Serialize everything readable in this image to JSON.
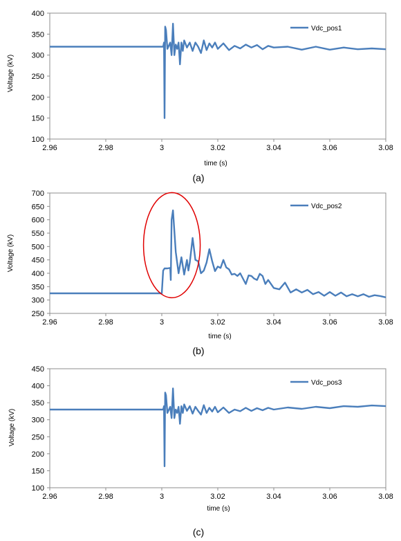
{
  "chart_data": [
    {
      "type": "line",
      "caption": "(a)",
      "xlabel": "time (s)",
      "ylabel": "Voltage (kV)",
      "xlim": [
        2.96,
        3.08
      ],
      "ylim": [
        100,
        400
      ],
      "xticks": [
        "2.96",
        "2.98",
        "3",
        "3.02",
        "3.04",
        "3.06",
        "3.08"
      ],
      "yticks": [
        "100",
        "150",
        "200",
        "250",
        "300",
        "350",
        "400"
      ],
      "legend_position": "top-right",
      "grid": false,
      "color": "#4a7ebb",
      "series": [
        {
          "name": "Vdc_pos1",
          "x": [
            2.96,
            2.97,
            2.98,
            2.99,
            2.9995,
            3.0005,
            3.0008,
            3.001,
            3.0012,
            3.0015,
            3.002,
            3.003,
            3.0035,
            3.004,
            3.0045,
            3.005,
            3.0055,
            3.006,
            3.0065,
            3.007,
            3.0075,
            3.008,
            3.009,
            3.01,
            3.011,
            3.012,
            3.013,
            3.014,
            3.015,
            3.016,
            3.017,
            3.018,
            3.019,
            3.02,
            3.022,
            3.024,
            3.026,
            3.028,
            3.03,
            3.032,
            3.034,
            3.036,
            3.038,
            3.04,
            3.045,
            3.05,
            3.055,
            3.06,
            3.065,
            3.07,
            3.075,
            3.08
          ],
          "y": [
            320,
            320,
            320,
            320,
            320,
            320,
            330,
            150,
            368,
            360,
            315,
            330,
            300,
            375,
            300,
            325,
            315,
            330,
            278,
            330,
            310,
            335,
            318,
            330,
            310,
            330,
            320,
            305,
            335,
            312,
            328,
            318,
            330,
            315,
            328,
            312,
            322,
            316,
            325,
            318,
            324,
            314,
            322,
            318,
            320,
            313,
            320,
            313,
            318,
            314,
            316,
            314
          ]
        }
      ]
    },
    {
      "type": "line",
      "caption": "(b)",
      "xlabel": "time (s)",
      "ylabel": "Voltage (kV)",
      "xlim": [
        2.96,
        3.08
      ],
      "ylim": [
        250,
        700
      ],
      "xticks": [
        "2.96",
        "2.98",
        "3",
        "3.02",
        "3.04",
        "3.06",
        "3.08"
      ],
      "yticks": [
        "250",
        "300",
        "350",
        "400",
        "450",
        "500",
        "550",
        "600",
        "650",
        "700"
      ],
      "legend_position": "top-right",
      "grid": false,
      "color": "#4a7ebb",
      "highlight_color": "#e00000",
      "series": [
        {
          "name": "Vdc_pos2",
          "x": [
            2.96,
            2.97,
            2.98,
            2.99,
            2.9995,
            3.0,
            3.0005,
            3.001,
            3.002,
            3.003,
            3.0032,
            3.0035,
            3.004,
            3.005,
            3.006,
            3.007,
            3.008,
            3.009,
            3.0095,
            3.01,
            3.011,
            3.012,
            3.013,
            3.014,
            3.015,
            3.016,
            3.017,
            3.018,
            3.019,
            3.02,
            3.021,
            3.022,
            3.023,
            3.024,
            3.025,
            3.026,
            3.027,
            3.028,
            3.03,
            3.031,
            3.032,
            3.033,
            3.034,
            3.035,
            3.036,
            3.037,
            3.038,
            3.04,
            3.042,
            3.044,
            3.046,
            3.048,
            3.05,
            3.052,
            3.054,
            3.056,
            3.058,
            3.06,
            3.062,
            3.064,
            3.066,
            3.068,
            3.07,
            3.072,
            3.074,
            3.076,
            3.078,
            3.08
          ],
          "y": [
            325,
            325,
            325,
            325,
            325,
            325,
            410,
            418,
            418,
            420,
            375,
            600,
            635,
            480,
            400,
            460,
            395,
            450,
            410,
            440,
            532,
            450,
            445,
            400,
            410,
            440,
            490,
            445,
            408,
            425,
            420,
            450,
            422,
            415,
            395,
            398,
            390,
            400,
            360,
            392,
            390,
            380,
            375,
            398,
            390,
            360,
            375,
            345,
            340,
            365,
            328,
            340,
            328,
            338,
            322,
            330,
            316,
            330,
            316,
            328,
            314,
            322,
            314,
            322,
            312,
            318,
            315,
            310
          ]
        }
      ]
    },
    {
      "type": "line",
      "caption": "(c)",
      "xlabel": "time (s)",
      "ylabel": "Voltage (kV)",
      "xlim": [
        2.96,
        3.08
      ],
      "ylim": [
        100,
        450
      ],
      "xticks": [
        "2.96",
        "2.98",
        "3",
        "3.02",
        "3.04",
        "3.06",
        "3.08"
      ],
      "yticks": [
        "100",
        "150",
        "200",
        "250",
        "300",
        "350",
        "400",
        "450"
      ],
      "legend_position": "top-right",
      "grid": false,
      "color": "#4a7ebb",
      "series": [
        {
          "name": "Vdc_pos3",
          "x": [
            2.96,
            2.97,
            2.98,
            2.99,
            2.9995,
            3.0005,
            3.0008,
            3.001,
            3.0012,
            3.0015,
            3.002,
            3.003,
            3.0035,
            3.004,
            3.0045,
            3.005,
            3.0055,
            3.006,
            3.0065,
            3.007,
            3.0075,
            3.008,
            3.009,
            3.01,
            3.011,
            3.012,
            3.013,
            3.014,
            3.015,
            3.016,
            3.017,
            3.018,
            3.019,
            3.02,
            3.022,
            3.024,
            3.026,
            3.028,
            3.03,
            3.032,
            3.034,
            3.036,
            3.038,
            3.04,
            3.045,
            3.05,
            3.055,
            3.06,
            3.065,
            3.07,
            3.075,
            3.08
          ],
          "y": [
            330,
            330,
            330,
            330,
            330,
            330,
            340,
            163,
            380,
            372,
            320,
            338,
            305,
            392,
            305,
            330,
            320,
            338,
            288,
            340,
            320,
            345,
            326,
            340,
            318,
            338,
            326,
            315,
            343,
            320,
            335,
            324,
            338,
            322,
            336,
            320,
            330,
            325,
            335,
            326,
            334,
            328,
            335,
            330,
            336,
            332,
            338,
            334,
            340,
            338,
            342,
            340
          ]
        }
      ]
    }
  ]
}
